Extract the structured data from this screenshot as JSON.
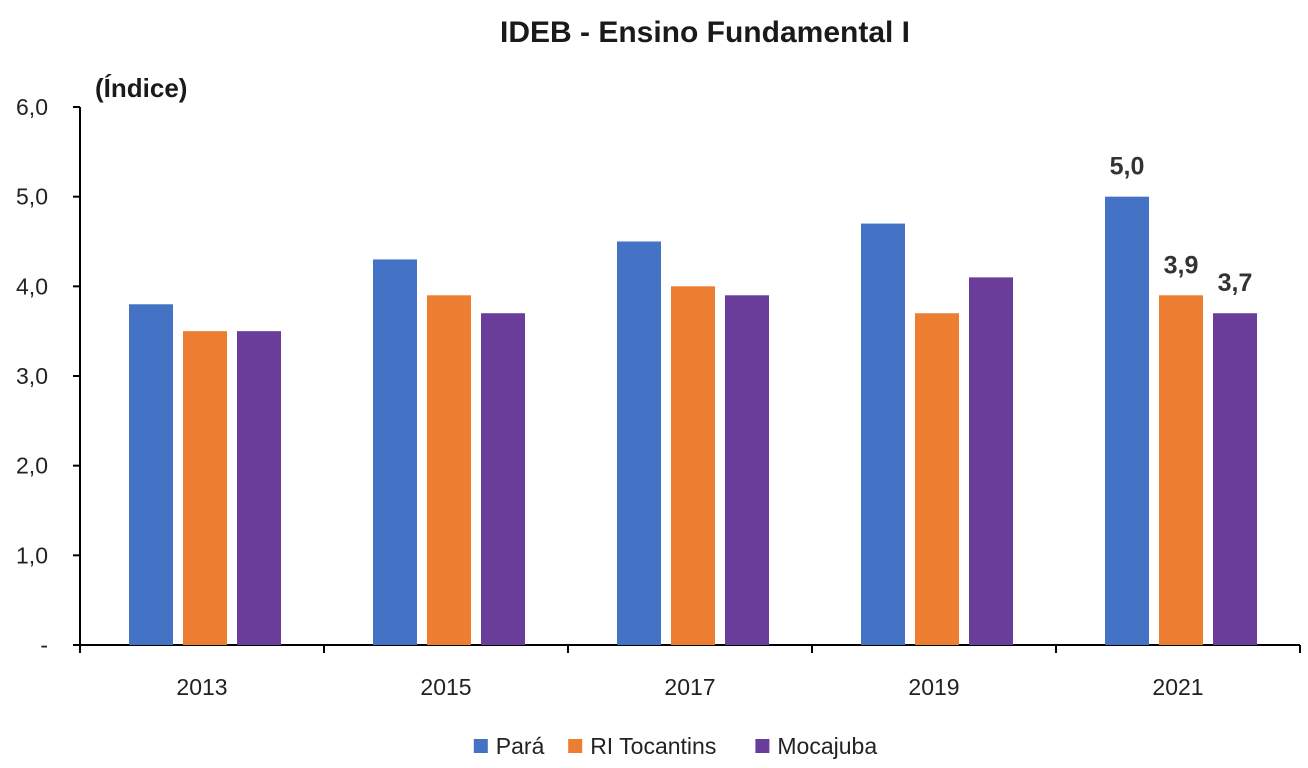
{
  "chart_data": {
    "type": "bar",
    "title": "IDEB - Ensino Fundamental I",
    "ylabel": "(Índice)",
    "xlabel": "",
    "categories": [
      "2013",
      "2015",
      "2017",
      "2019",
      "2021"
    ],
    "ylim": [
      0,
      6
    ],
    "yticks": [
      {
        "value": 0,
        "label": "-"
      },
      {
        "value": 1,
        "label": "1,0"
      },
      {
        "value": 2,
        "label": "2,0"
      },
      {
        "value": 3,
        "label": "3,0"
      },
      {
        "value": 4,
        "label": "4,0"
      },
      {
        "value": 5,
        "label": "5,0"
      },
      {
        "value": 6,
        "label": "6,0"
      }
    ],
    "series": [
      {
        "name": "Pará",
        "color": "#4472C4",
        "values": [
          3.8,
          4.3,
          4.5,
          4.7,
          5.0
        ]
      },
      {
        "name": "RI Tocantins",
        "color": "#ED7D31",
        "values": [
          3.5,
          3.9,
          4.0,
          3.7,
          3.9
        ]
      },
      {
        "name": "Mocajuba",
        "color": "#6A3D9A",
        "values": [
          3.5,
          3.7,
          3.9,
          4.1,
          3.7
        ]
      }
    ],
    "data_labels": [
      {
        "series": 0,
        "category": 4,
        "text": "5,0"
      },
      {
        "series": 1,
        "category": 4,
        "text": "3,9"
      },
      {
        "series": 2,
        "category": 4,
        "text": "3,7"
      }
    ],
    "grid": false,
    "legend_position": "bottom"
  }
}
